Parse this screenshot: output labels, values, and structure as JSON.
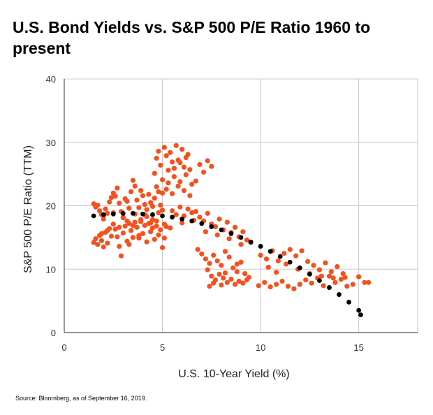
{
  "title": "U.S. Bond Yields vs. S&P 500 P/E Ratio 1960 to present",
  "source": "Source: Bloomberg, as of September 16, 2019.",
  "colors": {
    "scatter": "#f4511e",
    "trend": "#000000",
    "grid": "#c8c8c8",
    "axis": "#555555"
  },
  "chart_data": {
    "type": "scatter",
    "title": "U.S. Bond Yields vs. S&P 500 P/E Ratio 1960 to present",
    "xlabel": "U.S. 10-Year Yield (%)",
    "ylabel": "S&P 500 P/E Ratio (TTM)",
    "xlim": [
      0,
      18
    ],
    "ylim": [
      0,
      40
    ],
    "xticks": [
      0,
      5,
      10,
      15
    ],
    "yticks": [
      0,
      10,
      20,
      30,
      40
    ],
    "grid": true,
    "series": [
      {
        "kind": "scatter",
        "points": [
          [
            1.5,
            20.3
          ],
          [
            1.6,
            19.8
          ],
          [
            1.7,
            20.1
          ],
          [
            1.8,
            19.2
          ],
          [
            1.9,
            18.6
          ],
          [
            2.0,
            17.9
          ],
          [
            2.1,
            19.5
          ],
          [
            2.2,
            18.8
          ],
          [
            2.3,
            20.6
          ],
          [
            2.4,
            21.3
          ],
          [
            2.5,
            22.0
          ],
          [
            2.6,
            21.5
          ],
          [
            2.7,
            22.8
          ],
          [
            2.8,
            20.4
          ],
          [
            2.9,
            19.1
          ],
          [
            3.0,
            18.2
          ],
          [
            3.1,
            21.1
          ],
          [
            3.2,
            20.7
          ],
          [
            3.3,
            19.6
          ],
          [
            3.4,
            22.2
          ],
          [
            3.5,
            24.0
          ],
          [
            3.6,
            23.1
          ],
          [
            3.7,
            20.9
          ],
          [
            3.8,
            19.7
          ],
          [
            3.9,
            22.4
          ],
          [
            4.0,
            21.6
          ],
          [
            4.1,
            20.2
          ],
          [
            4.2,
            19.4
          ],
          [
            4.3,
            21.8
          ],
          [
            4.4,
            20.5
          ],
          [
            4.5,
            19.9
          ],
          [
            4.6,
            21.2
          ],
          [
            4.7,
            23.0
          ],
          [
            4.8,
            22.2
          ],
          [
            4.9,
            20.1
          ],
          [
            5.0,
            19.3
          ],
          [
            1.5,
            14.2
          ],
          [
            1.6,
            14.8
          ],
          [
            1.7,
            13.9
          ],
          [
            1.8,
            15.3
          ],
          [
            1.9,
            14.5
          ],
          [
            2.0,
            13.5
          ],
          [
            2.1,
            15.8
          ],
          [
            2.2,
            14.1
          ],
          [
            2.3,
            16.4
          ],
          [
            2.4,
            15.2
          ],
          [
            2.5,
            17.1
          ],
          [
            2.6,
            16.3
          ],
          [
            2.7,
            15.1
          ],
          [
            2.8,
            13.6
          ],
          [
            2.9,
            12.1
          ],
          [
            3.0,
            15.7
          ],
          [
            3.1,
            16.8
          ],
          [
            3.2,
            14.4
          ],
          [
            3.3,
            13.9
          ],
          [
            3.4,
            16.1
          ],
          [
            3.5,
            15.0
          ],
          [
            3.6,
            17.4
          ],
          [
            3.7,
            16.6
          ],
          [
            3.8,
            14.9
          ],
          [
            3.9,
            17.8
          ],
          [
            4.0,
            15.6
          ],
          [
            4.1,
            16.9
          ],
          [
            4.2,
            14.3
          ],
          [
            4.3,
            17.2
          ],
          [
            4.4,
            15.9
          ],
          [
            4.5,
            16.5
          ],
          [
            4.6,
            14.7
          ],
          [
            4.7,
            17.6
          ],
          [
            4.8,
            15.4
          ],
          [
            4.9,
            16.2
          ],
          [
            5.0,
            13.4
          ],
          [
            5.1,
            14.9
          ],
          [
            5.2,
            16.7
          ],
          [
            2.0,
            18.5
          ],
          [
            2.5,
            18.9
          ],
          [
            3.0,
            18.1
          ],
          [
            3.3,
            17.2
          ],
          [
            3.6,
            18.7
          ],
          [
            3.9,
            17.5
          ],
          [
            4.2,
            18.3
          ],
          [
            4.5,
            17.8
          ],
          [
            4.8,
            18.9
          ],
          [
            5.1,
            17.1
          ],
          [
            5.4,
            16.5
          ],
          [
            3.8,
            15.3
          ],
          [
            4.1,
            18.6
          ],
          [
            4.4,
            17.3
          ],
          [
            4.7,
            16.8
          ],
          [
            3.5,
            16.9
          ],
          [
            3.2,
            17.6
          ],
          [
            2.8,
            16.6
          ],
          [
            2.2,
            16.1
          ],
          [
            1.9,
            15.6
          ],
          [
            4.6,
            25.1
          ],
          [
            4.7,
            27.5
          ],
          [
            4.8,
            28.6
          ],
          [
            4.9,
            26.4
          ],
          [
            5.0,
            24.1
          ],
          [
            5.1,
            29.2
          ],
          [
            5.2,
            27.9
          ],
          [
            5.3,
            25.6
          ],
          [
            5.4,
            28.4
          ],
          [
            5.5,
            26.9
          ],
          [
            5.6,
            24.6
          ],
          [
            5.7,
            29.5
          ],
          [
            5.8,
            27.2
          ],
          [
            5.9,
            23.8
          ],
          [
            6.0,
            28.9
          ],
          [
            6.1,
            26.1
          ],
          [
            6.2,
            24.9
          ],
          [
            6.3,
            28.1
          ],
          [
            6.4,
            25.7
          ],
          [
            6.5,
            23.4
          ],
          [
            5.2,
            22.6
          ],
          [
            5.5,
            21.9
          ],
          [
            5.8,
            23.1
          ],
          [
            6.1,
            22.4
          ],
          [
            6.4,
            21.6
          ],
          [
            6.7,
            23.9
          ],
          [
            6.9,
            26.5
          ],
          [
            7.1,
            25.3
          ],
          [
            7.3,
            27.1
          ],
          [
            7.5,
            26.2
          ],
          [
            5.0,
            22.0
          ],
          [
            5.3,
            23.6
          ],
          [
            5.6,
            25.9
          ],
          [
            5.9,
            26.8
          ],
          [
            6.2,
            27.6
          ],
          [
            5.5,
            19.2
          ],
          [
            5.7,
            18.6
          ],
          [
            5.9,
            19.8
          ],
          [
            6.1,
            18.4
          ],
          [
            6.3,
            19.5
          ],
          [
            6.5,
            18.9
          ],
          [
            6.7,
            19.1
          ],
          [
            6.9,
            18.2
          ],
          [
            7.1,
            17.6
          ],
          [
            7.3,
            18.8
          ],
          [
            7.5,
            17.1
          ],
          [
            7.7,
            16.7
          ],
          [
            7.9,
            17.9
          ],
          [
            8.1,
            16.2
          ],
          [
            8.3,
            17.4
          ],
          [
            8.5,
            15.8
          ],
          [
            8.7,
            16.6
          ],
          [
            8.9,
            15.1
          ],
          [
            9.1,
            15.9
          ],
          [
            9.3,
            14.6
          ],
          [
            9.5,
            14.2
          ],
          [
            6.0,
            17.3
          ],
          [
            6.6,
            17.7
          ],
          [
            7.2,
            15.9
          ],
          [
            7.8,
            15.4
          ],
          [
            8.4,
            14.8
          ],
          [
            9.0,
            13.9
          ],
          [
            6.8,
            13.1
          ],
          [
            7.0,
            12.4
          ],
          [
            7.2,
            11.6
          ],
          [
            7.4,
            10.9
          ],
          [
            7.6,
            12.2
          ],
          [
            7.8,
            11.3
          ],
          [
            8.0,
            10.6
          ],
          [
            8.2,
            12.8
          ],
          [
            8.4,
            11.9
          ],
          [
            8.6,
            10.2
          ],
          [
            8.8,
            9.6
          ],
          [
            9.0,
            11.1
          ],
          [
            9.2,
            9.3
          ],
          [
            9.4,
            8.7
          ],
          [
            7.3,
            9.9
          ],
          [
            7.5,
            8.9
          ],
          [
            7.7,
            8.3
          ],
          [
            7.9,
            9.2
          ],
          [
            8.1,
            8.6
          ],
          [
            8.3,
            7.9
          ],
          [
            8.5,
            8.4
          ],
          [
            8.7,
            7.6
          ],
          [
            8.9,
            8.1
          ],
          [
            9.1,
            7.8
          ],
          [
            9.3,
            8.3
          ],
          [
            7.4,
            7.3
          ],
          [
            7.6,
            7.8
          ],
          [
            8.0,
            7.5
          ],
          [
            8.2,
            9.4
          ],
          [
            8.8,
            10.8
          ],
          [
            9.9,
            7.4
          ],
          [
            10.2,
            7.9
          ],
          [
            10.5,
            7.2
          ],
          [
            10.8,
            7.6
          ],
          [
            11.1,
            8.1
          ],
          [
            11.4,
            7.3
          ],
          [
            11.7,
            6.9
          ],
          [
            12.0,
            7.6
          ],
          [
            12.3,
            8.3
          ],
          [
            12.6,
            7.8
          ],
          [
            12.9,
            8.6
          ],
          [
            13.2,
            7.4
          ],
          [
            13.5,
            8.9
          ],
          [
            13.8,
            7.9
          ],
          [
            14.1,
            8.4
          ],
          [
            14.4,
            7.3
          ],
          [
            14.7,
            7.6
          ],
          [
            15.0,
            8.8
          ],
          [
            15.3,
            7.9
          ],
          [
            15.5,
            7.9
          ],
          [
            10.0,
            12.2
          ],
          [
            10.3,
            11.6
          ],
          [
            10.6,
            12.9
          ],
          [
            10.9,
            11.3
          ],
          [
            11.2,
            12.5
          ],
          [
            11.5,
            13.1
          ],
          [
            11.8,
            12.1
          ],
          [
            12.1,
            12.9
          ],
          [
            12.4,
            11.2
          ],
          [
            12.7,
            10.6
          ],
          [
            13.0,
            9.9
          ],
          [
            13.3,
            11.0
          ],
          [
            13.6,
            9.6
          ],
          [
            13.9,
            10.4
          ],
          [
            14.2,
            9.3
          ],
          [
            10.4,
            10.3
          ],
          [
            10.8,
            9.5
          ],
          [
            11.3,
            10.8
          ],
          [
            11.9,
            10.0
          ],
          [
            12.5,
            9.3
          ],
          [
            13.1,
            8.9
          ],
          [
            13.7,
            8.6
          ],
          [
            14.3,
            8.7
          ]
        ]
      },
      {
        "kind": "trend",
        "points": [
          [
            1.5,
            18.4
          ],
          [
            2.0,
            18.6
          ],
          [
            2.5,
            18.7
          ],
          [
            3.0,
            18.8
          ],
          [
            3.5,
            18.8
          ],
          [
            4.0,
            18.7
          ],
          [
            4.5,
            18.6
          ],
          [
            5.0,
            18.4
          ],
          [
            5.5,
            18.2
          ],
          [
            6.0,
            17.9
          ],
          [
            6.5,
            17.6
          ],
          [
            7.0,
            17.2
          ],
          [
            7.5,
            16.7
          ],
          [
            8.0,
            16.2
          ],
          [
            8.5,
            15.6
          ],
          [
            9.0,
            15.0
          ],
          [
            9.5,
            14.3
          ],
          [
            10.0,
            13.6
          ],
          [
            10.5,
            12.8
          ],
          [
            11.0,
            12.0
          ],
          [
            11.5,
            11.1
          ],
          [
            12.0,
            10.2
          ],
          [
            12.5,
            9.2
          ],
          [
            13.0,
            8.2
          ],
          [
            13.5,
            7.1
          ],
          [
            14.0,
            6.0
          ],
          [
            14.5,
            4.8
          ],
          [
            15.0,
            3.5
          ],
          [
            15.1,
            2.8
          ]
        ]
      }
    ]
  }
}
